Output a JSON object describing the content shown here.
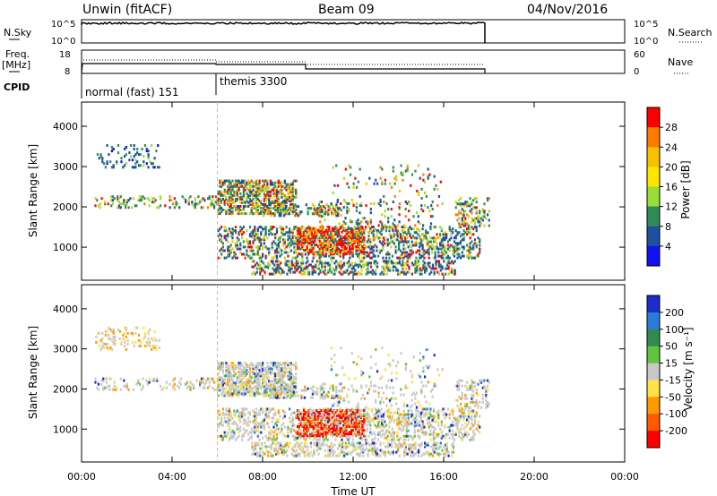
{
  "header": {
    "title_left": "Unwin (fitACF)",
    "title_center": "Beam 09",
    "title_right": "04/Nov/2016"
  },
  "side_labels": {
    "nsky": "N.Sky",
    "freq_line1": "Freq.",
    "freq_line2": "[MHz]",
    "cpid": "CPID",
    "nsearch": "N.Search",
    "nave": "Nave"
  },
  "strip_ticks": {
    "nsky_left": [
      "10^5",
      "10^0"
    ],
    "nsky_right": [
      "10^5",
      "10^0"
    ],
    "freq_left": [
      "18",
      "8"
    ],
    "freq_right": [
      "60",
      "0"
    ]
  },
  "cpid_segments": [
    {
      "label": "normal (fast) 151",
      "start_hour": 0
    },
    {
      "label": "themis 3300",
      "start_hour": 6
    }
  ],
  "chart_data": [
    {
      "type": "heatmap",
      "name": "power",
      "xlabel": "",
      "ylabel": "Slant Range [km]",
      "xlim": [
        0,
        24
      ],
      "ylim": [
        180,
        4600
      ],
      "yticks": [
        "4000",
        "3000",
        "2000",
        "1000"
      ],
      "colorbar_label": "Power [dB]",
      "colorbar_ticks": [
        "28",
        "24",
        "20",
        "16",
        "12",
        "8",
        "4"
      ],
      "colorbar_colors": [
        "#ff0000",
        "#ff7a00",
        "#f8c000",
        "#ffe400",
        "#9adc3a",
        "#2e8b57",
        "#1f4fa0",
        "#1010f0"
      ]
    },
    {
      "type": "heatmap",
      "name": "velocity",
      "xlabel": "Time UT",
      "ylabel": "Slant Range [km]",
      "xlim": [
        0,
        24
      ],
      "ylim": [
        180,
        4600
      ],
      "xticks": [
        "00:00",
        "04:00",
        "08:00",
        "12:00",
        "16:00",
        "20:00",
        "00:00"
      ],
      "yticks": [
        "4000",
        "3000",
        "2000",
        "1000"
      ],
      "colorbar_label": "Velocity [m s⁻¹]",
      "colorbar_ticks": [
        "200",
        "100",
        "50",
        "15",
        "-15",
        "-50",
        "-100",
        "-200"
      ],
      "colorbar_colors": [
        "#1a2dc8",
        "#2b7bd8",
        "#2f8b4f",
        "#62c43c",
        "#c8c8c8",
        "#ffe14a",
        "#ff9a00",
        "#ff5a00",
        "#ff0000"
      ]
    }
  ]
}
